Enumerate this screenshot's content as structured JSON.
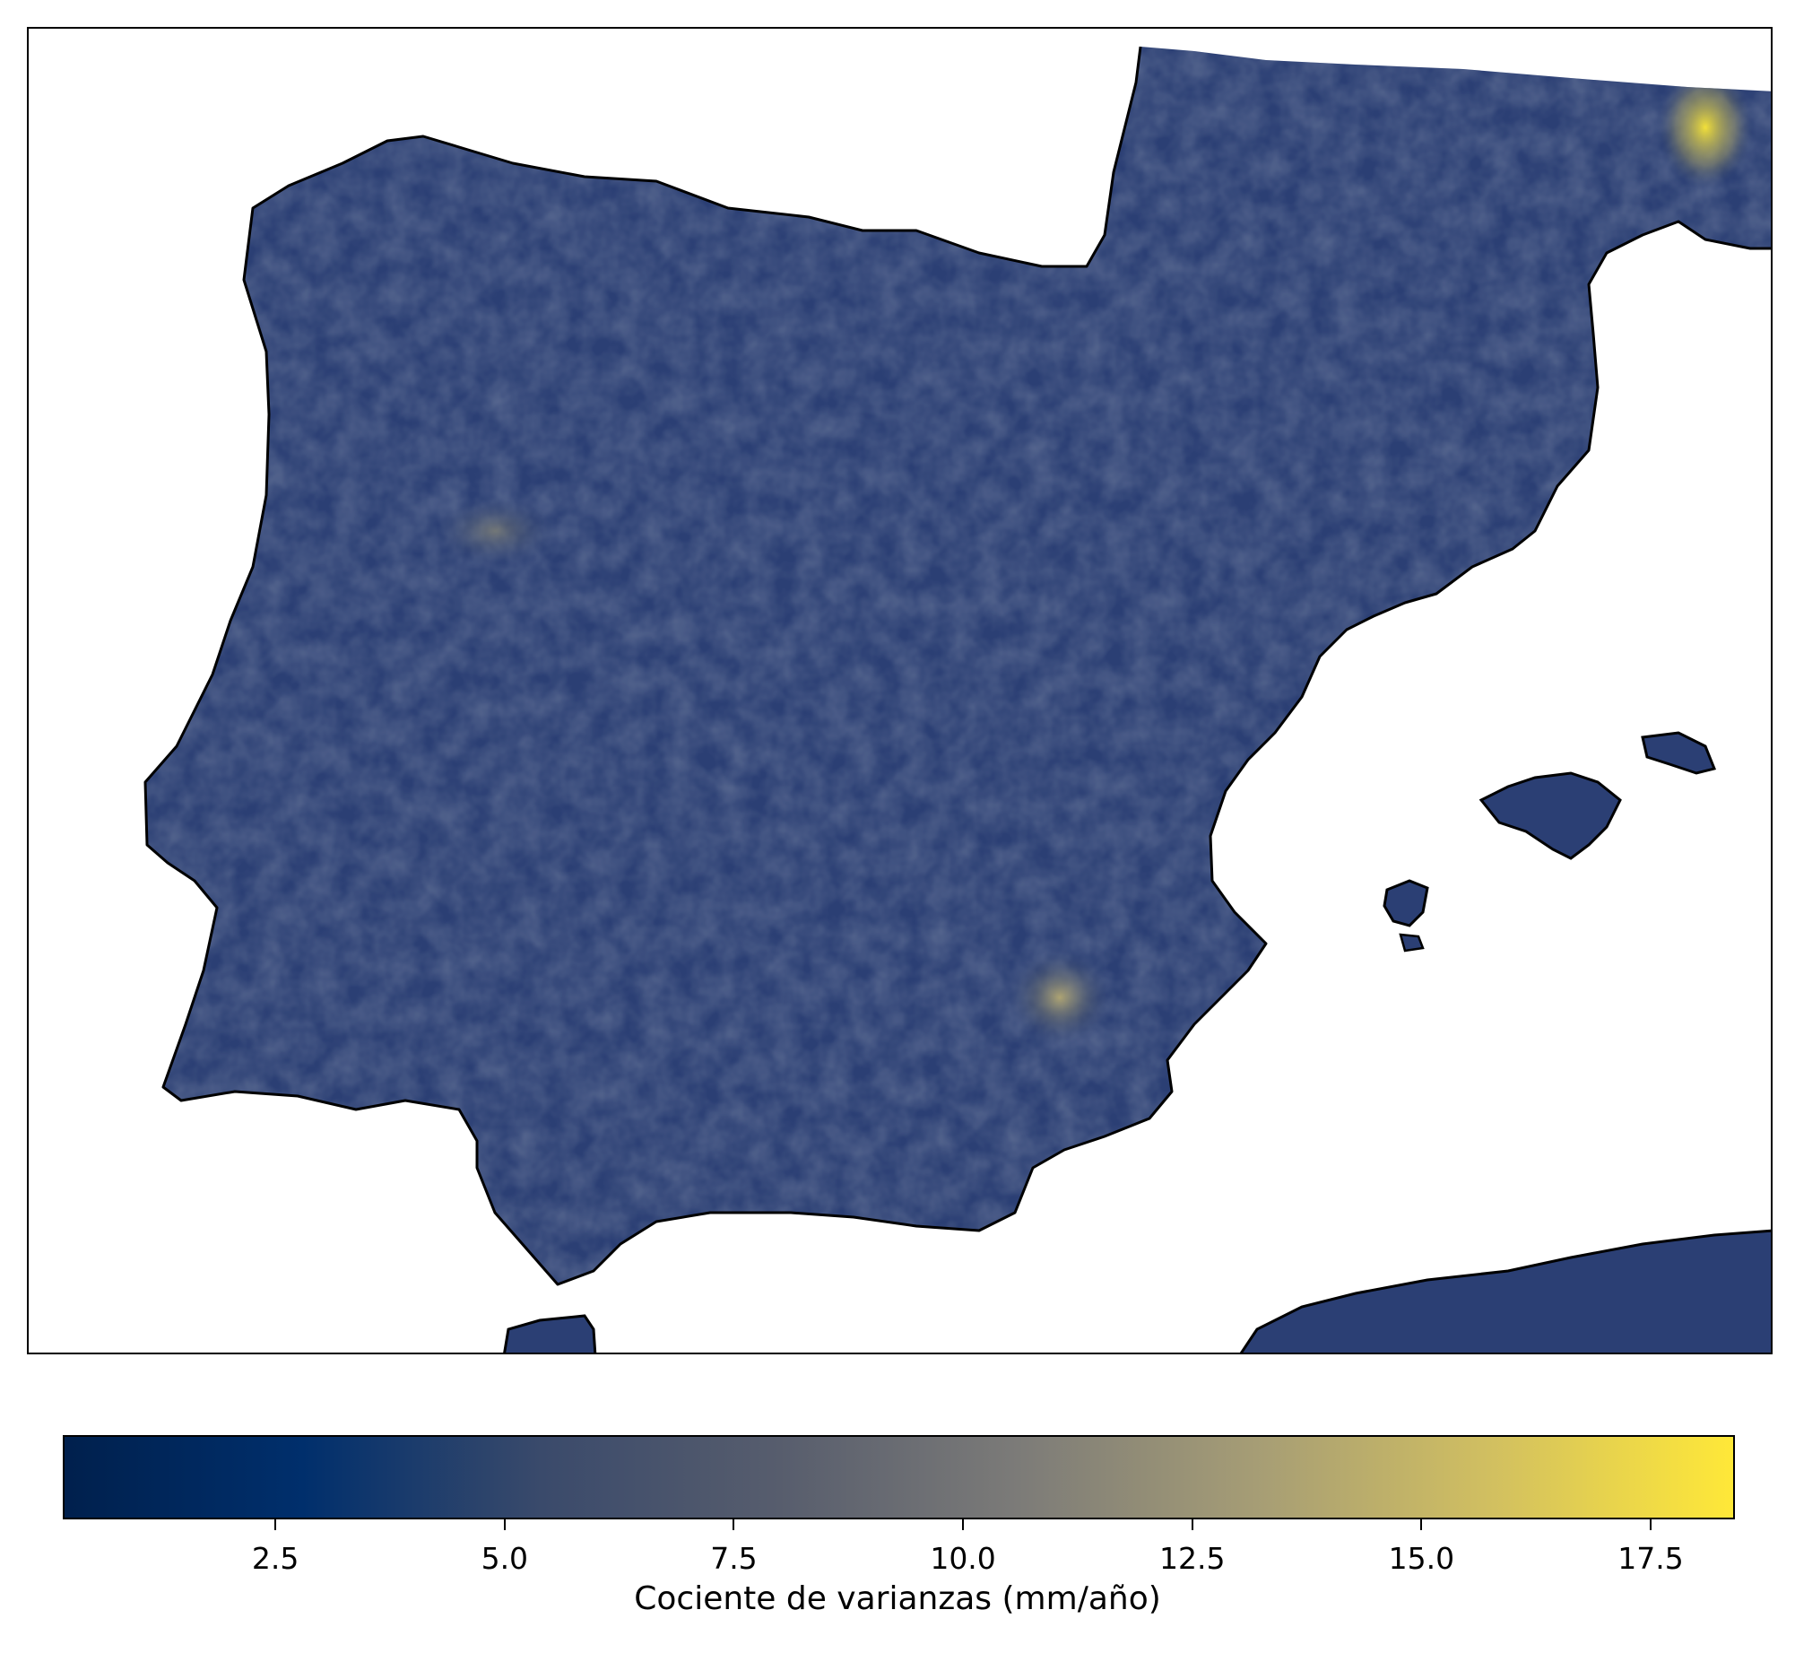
{
  "map": {
    "region": "Iberian Peninsula",
    "fill_color": "#2b3f74",
    "coast_color": "#000000",
    "hotspot_color": "#f2e03a"
  },
  "colorbar": {
    "label": "Cociente de varianzas (mm/año)",
    "min": 0.2,
    "max": 18.4,
    "ticks": [
      {
        "value": 2.5,
        "label": "2.5"
      },
      {
        "value": 5.0,
        "label": "5.0"
      },
      {
        "value": 7.5,
        "label": "7.5"
      },
      {
        "value": 10.0,
        "label": "10.0"
      },
      {
        "value": 12.5,
        "label": "12.5"
      },
      {
        "value": 15.0,
        "label": "15.0"
      },
      {
        "value": 17.5,
        "label": "17.5"
      }
    ],
    "stops": [
      "#00204d",
      "#002f6c",
      "#3a4a6b",
      "#575d6d",
      "#7c7b78",
      "#a69d75",
      "#d2c060",
      "#ffe838"
    ]
  }
}
